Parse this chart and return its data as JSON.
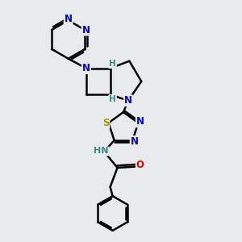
{
  "bg_color": "#e8eaec",
  "bond_color": "#000000",
  "bond_width": 1.8,
  "atom_colors": {
    "N": "#0000ee",
    "S": "#999900",
    "O": "#ee0000",
    "H": "#3a8a8a",
    "C": "#000000"
  },
  "xlim": [
    0,
    10
  ],
  "ylim": [
    0,
    10
  ]
}
